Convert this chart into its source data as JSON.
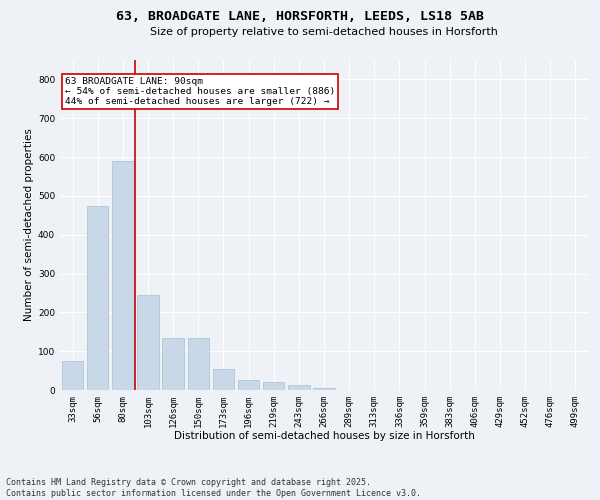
{
  "title_line1": "63, BROADGATE LANE, HORSFORTH, LEEDS, LS18 5AB",
  "title_line2": "Size of property relative to semi-detached houses in Horsforth",
  "xlabel": "Distribution of semi-detached houses by size in Horsforth",
  "ylabel": "Number of semi-detached properties",
  "categories": [
    "33sqm",
    "56sqm",
    "80sqm",
    "103sqm",
    "126sqm",
    "150sqm",
    "173sqm",
    "196sqm",
    "219sqm",
    "243sqm",
    "266sqm",
    "289sqm",
    "313sqm",
    "336sqm",
    "359sqm",
    "383sqm",
    "406sqm",
    "429sqm",
    "452sqm",
    "476sqm",
    "499sqm"
  ],
  "values": [
    75,
    475,
    590,
    245,
    135,
    135,
    55,
    25,
    20,
    12,
    5,
    0,
    0,
    0,
    0,
    0,
    0,
    0,
    0,
    0,
    0
  ],
  "bar_color": "#c8d8e8",
  "bar_edge_color": "#a8bfcf",
  "vline_x": 2.5,
  "vline_color": "#cc0000",
  "annotation_title": "63 BROADGATE LANE: 90sqm",
  "annotation_line2": "← 54% of semi-detached houses are smaller (886)",
  "annotation_line3": "44% of semi-detached houses are larger (722) →",
  "annotation_box_color": "#ffffff",
  "annotation_box_edge": "#cc0000",
  "footer_line1": "Contains HM Land Registry data © Crown copyright and database right 2025.",
  "footer_line2": "Contains public sector information licensed under the Open Government Licence v3.0.",
  "ylim": [
    0,
    850
  ],
  "yticks": [
    0,
    100,
    200,
    300,
    400,
    500,
    600,
    700,
    800
  ],
  "background_color": "#eef2f7",
  "grid_color": "#ffffff",
  "title_fontsize": 9.5,
  "subtitle_fontsize": 8,
  "axis_label_fontsize": 7.5,
  "tick_fontsize": 6.5,
  "annotation_fontsize": 6.8,
  "footer_fontsize": 6.0
}
